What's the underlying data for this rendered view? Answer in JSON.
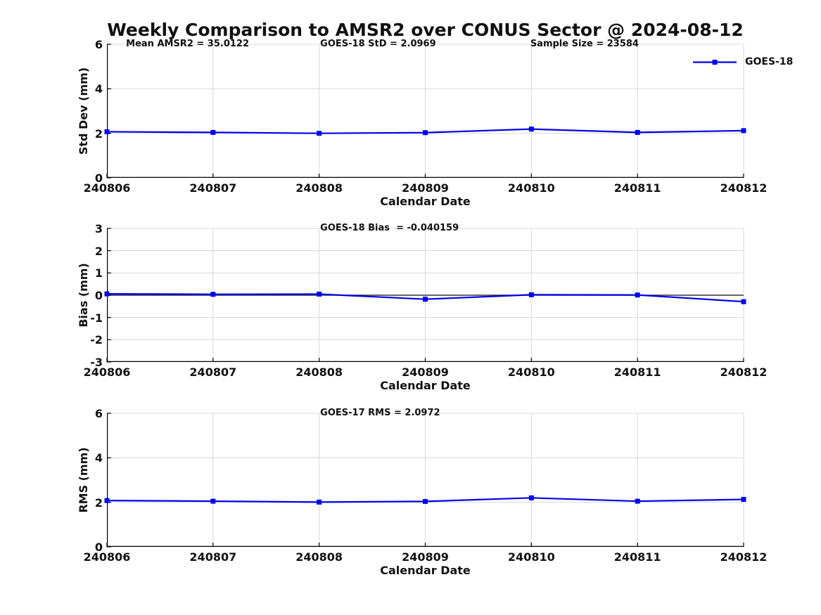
{
  "figure_title": "Weekly Comparison to AMSR2 over CONUS Sector @ 2024-08-12",
  "legend": {
    "label": "GOES-18"
  },
  "palette": {
    "series_blue": "#0000EE",
    "grid": "#D9D9D9",
    "axis": "#000000",
    "zero_line": "#333333",
    "text": "#111111",
    "background": "#FFFFFF"
  },
  "chart_data": [
    {
      "type": "line",
      "ylabel": "Std Dev (mm)",
      "xlabel": "Calendar Date",
      "x": [
        "240806",
        "240807",
        "240808",
        "240809",
        "240810",
        "240811",
        "240812"
      ],
      "yticks": [
        0,
        2,
        4,
        6
      ],
      "ylim": [
        0,
        6
      ],
      "grid": true,
      "legend_position": "outside-top-right",
      "series": [
        {
          "name": "GOES-18",
          "color": "#0000EE",
          "marker": "square",
          "values": [
            2.07,
            2.04,
            2.0,
            2.03,
            2.19,
            2.04,
            2.12
          ]
        }
      ],
      "annotations": [
        "Mean AMSR2 = 35.0122",
        "GOES-18 StD = 2.0969",
        "Sample Size = 23584"
      ]
    },
    {
      "type": "line",
      "ylabel": "Bias (mm)",
      "xlabel": "Calendar Date",
      "x": [
        "240806",
        "240807",
        "240808",
        "240809",
        "240810",
        "240811",
        "240812"
      ],
      "yticks": [
        -3,
        -2,
        -1,
        0,
        1,
        2,
        3
      ],
      "ylim": [
        -3,
        3
      ],
      "grid": true,
      "zero_line": true,
      "series": [
        {
          "name": "GOES-18",
          "color": "#0000EE",
          "marker": "square",
          "values": [
            0.06,
            0.04,
            0.05,
            -0.18,
            0.02,
            0.01,
            -0.29
          ]
        }
      ],
      "annotations": [
        "GOES-18 Bias  = -0.040159"
      ]
    },
    {
      "type": "line",
      "ylabel": "RMS (mm)",
      "xlabel": "Calendar Date",
      "x": [
        "240806",
        "240807",
        "240808",
        "240809",
        "240810",
        "240811",
        "240812"
      ],
      "yticks": [
        0,
        2,
        4,
        6
      ],
      "ylim": [
        0,
        6
      ],
      "grid": true,
      "series": [
        {
          "name": "GOES-18",
          "color": "#0000EE",
          "marker": "square",
          "values": [
            2.08,
            2.05,
            2.01,
            2.04,
            2.2,
            2.05,
            2.13
          ]
        }
      ],
      "annotations": [
        "GOES-17 RMS = 2.0972"
      ]
    }
  ]
}
